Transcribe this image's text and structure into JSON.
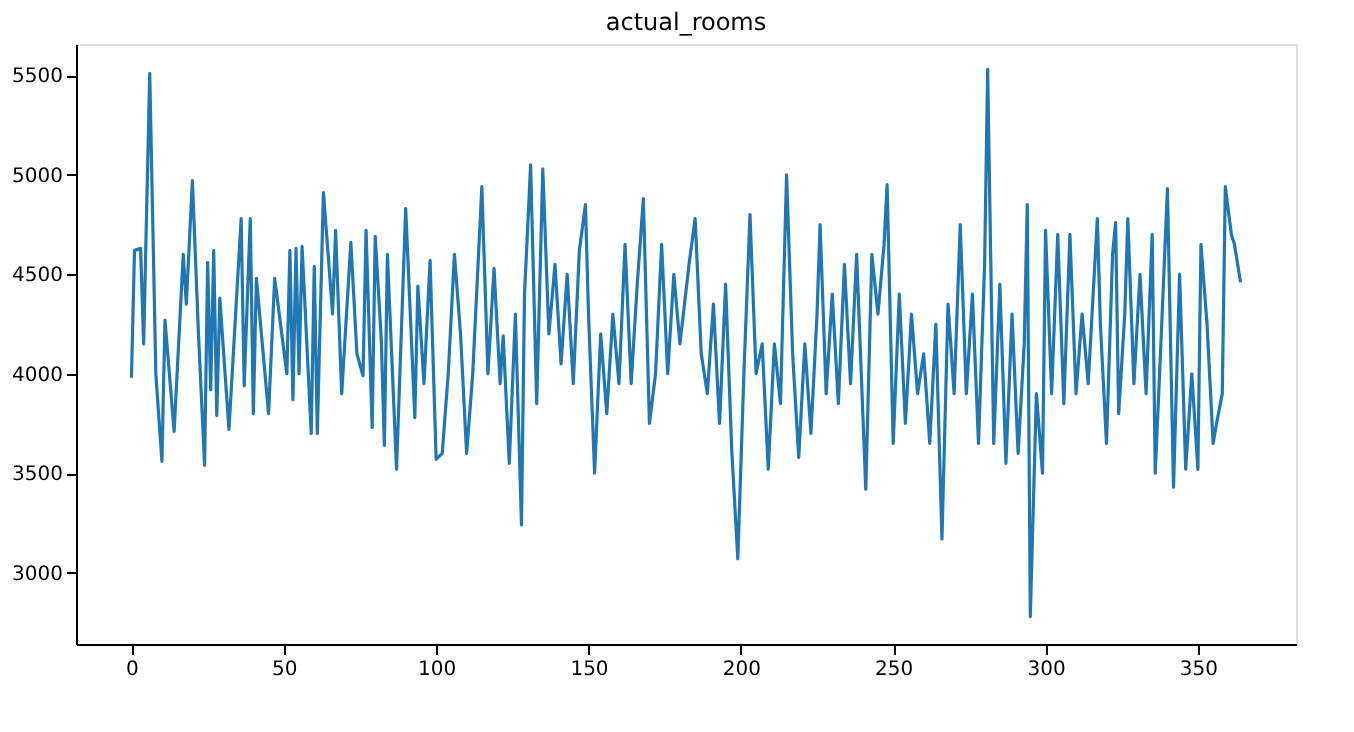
{
  "chart_data": {
    "type": "line",
    "title": "actual_rooms",
    "x": [
      0,
      1,
      3,
      4,
      6,
      8,
      10,
      11,
      14,
      17,
      18,
      20,
      22,
      24,
      25,
      26,
      27,
      28,
      29,
      32,
      36,
      37,
      39,
      40,
      41,
      45,
      47,
      51,
      52,
      53,
      54,
      55,
      56,
      59,
      60,
      61,
      63,
      65,
      66,
      67,
      69,
      72,
      74,
      76,
      77,
      79,
      80,
      82,
      83,
      84,
      87,
      90,
      93,
      94,
      96,
      98,
      100,
      102,
      104,
      106,
      108,
      110,
      112,
      115,
      117,
      119,
      121,
      122,
      124,
      126,
      128,
      129,
      131,
      133,
      135,
      137,
      139,
      141,
      143,
      145,
      147,
      149,
      150,
      152,
      154,
      156,
      158,
      160,
      162,
      164,
      166,
      168,
      170,
      172,
      174,
      176,
      178,
      180,
      183,
      185,
      187,
      189,
      191,
      193,
      195,
      197,
      199,
      201,
      203,
      205,
      207,
      209,
      211,
      213,
      215,
      217,
      219,
      221,
      223,
      225,
      226,
      228,
      230,
      232,
      234,
      236,
      238,
      241,
      243,
      245,
      247,
      248,
      250,
      252,
      254,
      256,
      258,
      260,
      262,
      264,
      266,
      268,
      270,
      272,
      274,
      276,
      278,
      280,
      281,
      283,
      285,
      287,
      289,
      291,
      293,
      294,
      295,
      297,
      299,
      300,
      302,
      304,
      306,
      308,
      310,
      312,
      314,
      317,
      318,
      320,
      322,
      323,
      324,
      326,
      327,
      329,
      331,
      333,
      335,
      336,
      338,
      340,
      342,
      344,
      346,
      348,
      350,
      351,
      353,
      355,
      356,
      358,
      359,
      361,
      362,
      364
    ],
    "series": [
      {
        "color": "#1f77b4",
        "values": [
          3980,
          4620,
          4630,
          4150,
          5510,
          4000,
          3560,
          4270,
          3710,
          4600,
          4350,
          4970,
          4200,
          3540,
          4560,
          3920,
          4620,
          3790,
          4380,
          3720,
          4780,
          3940,
          4780,
          3800,
          4480,
          3800,
          4480,
          4000,
          4620,
          3870,
          4630,
          4000,
          4640,
          3700,
          4540,
          3700,
          4910,
          4510,
          4300,
          4720,
          3900,
          4660,
          4100,
          3990,
          4720,
          3730,
          4690,
          4170,
          3640,
          4600,
          3520,
          4830,
          3780,
          4440,
          3950,
          4570,
          3570,
          3600,
          4010,
          4600,
          4200,
          3600,
          4000,
          4940,
          4000,
          4530,
          3950,
          4190,
          3550,
          4300,
          3240,
          4400,
          5050,
          3850,
          5030,
          4200,
          4550,
          4050,
          4500,
          3950,
          4620,
          4850,
          4300,
          3500,
          4200,
          3800,
          4300,
          3950,
          4650,
          3950,
          4450,
          4880,
          3750,
          4000,
          4650,
          4000,
          4500,
          4150,
          4550,
          4780,
          4100,
          3900,
          4350,
          3750,
          4450,
          3620,
          3070,
          4000,
          4800,
          4000,
          4150,
          3520,
          4150,
          3850,
          5000,
          4100,
          3580,
          4150,
          3700,
          4300,
          4750,
          3900,
          4400,
          3850,
          4550,
          3950,
          4600,
          3420,
          4600,
          4300,
          4650,
          4950,
          3650,
          4400,
          3750,
          4300,
          3900,
          4100,
          3650,
          4250,
          3170,
          4350,
          3900,
          4750,
          3900,
          4400,
          3650,
          4550,
          5530,
          3650,
          4450,
          3550,
          4300,
          3600,
          4150,
          4850,
          2780,
          3900,
          3500,
          4720,
          3900,
          4700,
          3850,
          4700,
          3900,
          4300,
          3950,
          4780,
          4250,
          3650,
          4600,
          4760,
          3800,
          4300,
          4780,
          3950,
          4500,
          3900,
          4700,
          3500,
          4200,
          4930,
          3430,
          4500,
          3520,
          4000,
          3520,
          4650,
          4250,
          3650,
          3740,
          3900,
          4940,
          4700,
          4650,
          4460
        ]
      }
    ],
    "xlim": [
      -18.2,
      382.2
    ],
    "xticks": [
      0,
      50,
      100,
      150,
      200,
      250,
      300,
      350
    ],
    "ylim": [
      2642,
      5657
    ],
    "yticks": [
      3000,
      3500,
      4000,
      4500,
      5000,
      5500
    ],
    "grid": false,
    "legend": false,
    "marker": "none",
    "line_style": "solid"
  }
}
